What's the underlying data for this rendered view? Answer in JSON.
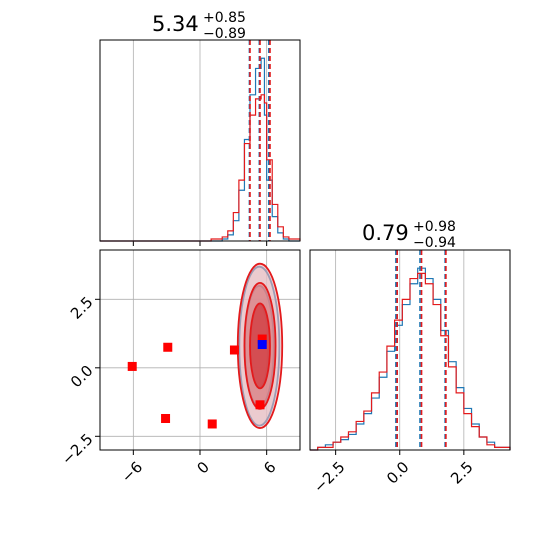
{
  "chart_data": [
    {
      "panel": "top-left",
      "type": "histogram",
      "title": {
        "value": "5.34",
        "upper": "+0.85",
        "lower": "−0.89"
      },
      "xlim": [
        -9,
        9
      ],
      "x_ticks": [
        -6,
        0,
        6
      ],
      "grid": true,
      "series": [
        {
          "color": "#1f77b4",
          "bins": [
            [
              -9,
              -8,
              0
            ],
            [
              -8,
              -7,
              0
            ],
            [
              -7,
              -6,
              0
            ],
            [
              -6,
              -5,
              0
            ],
            [
              -5,
              -4,
              0
            ],
            [
              -4,
              -3,
              0
            ],
            [
              -3,
              -2,
              0
            ],
            [
              -2,
              -1,
              0
            ],
            [
              -1,
              0,
              0
            ],
            [
              0,
              1,
              0
            ],
            [
              1,
              2,
              0
            ],
            [
              2,
              2.5,
              1
            ],
            [
              2.5,
              3,
              3
            ],
            [
              3,
              3.5,
              10
            ],
            [
              3.5,
              4,
              25
            ],
            [
              4,
              4.5,
              50
            ],
            [
              4.5,
              5,
              72
            ],
            [
              5,
              5.5,
              85
            ],
            [
              5.5,
              5.8,
              90
            ],
            [
              5.8,
              6,
              62
            ],
            [
              6,
              6.5,
              30
            ],
            [
              6.5,
              7,
              12
            ],
            [
              7,
              7.5,
              4
            ],
            [
              7.5,
              8,
              1
            ],
            [
              8,
              9,
              0
            ]
          ]
        },
        {
          "color": "#e31a1c",
          "bins": [
            [
              -9,
              -8,
              0
            ],
            [
              -8,
              -7,
              0
            ],
            [
              -7,
              -6,
              0
            ],
            [
              -6,
              -5,
              0
            ],
            [
              -5,
              -4,
              0
            ],
            [
              -4,
              -3,
              0
            ],
            [
              -3,
              -2,
              0
            ],
            [
              -2,
              -1,
              0
            ],
            [
              -1,
              0,
              0
            ],
            [
              0,
              1,
              0
            ],
            [
              1,
              2,
              1
            ],
            [
              2,
              2.5,
              2
            ],
            [
              2.5,
              3,
              5
            ],
            [
              3,
              3.5,
              14
            ],
            [
              3.5,
              4,
              30
            ],
            [
              4,
              4.5,
              48
            ],
            [
              4.5,
              5,
              62
            ],
            [
              5,
              5.5,
              70
            ],
            [
              5.5,
              5.8,
              72
            ],
            [
              5.8,
              6,
              68
            ],
            [
              6,
              6.5,
              40
            ],
            [
              6.5,
              7,
              18
            ],
            [
              7,
              7.5,
              7
            ],
            [
              7.5,
              8,
              2
            ],
            [
              8,
              9,
              1
            ]
          ]
        }
      ],
      "quantile_lines": [
        {
          "color": "#1f77b4",
          "x": [
            4.45,
            5.34,
            6.19
          ]
        },
        {
          "color": "#e31a1c",
          "x": [
            4.5,
            5.4,
            6.3
          ]
        }
      ]
    },
    {
      "panel": "bottom-left",
      "type": "scatter",
      "xlim": [
        -9,
        9
      ],
      "ylim": [
        -3,
        4.3
      ],
      "x_ticks": [
        -6,
        0,
        6
      ],
      "y_ticks": [
        -2.5,
        0.0,
        2.5
      ],
      "x_tick_labels": [
        "−6",
        "0",
        "6"
      ],
      "y_tick_labels": [
        "−2.5",
        "0.0",
        "2.5"
      ],
      "grid": true,
      "contours": [
        {
          "color": "#1f77b4",
          "center": [
            5.34,
            0.79
          ],
          "levels": [
            [
              0.8,
              1.5
            ],
            [
              1.3,
              2.2
            ],
            [
              1.8,
              2.9
            ]
          ]
        },
        {
          "color": "#e31a1c",
          "center": [
            5.4,
            0.8
          ],
          "levels": [
            [
              0.9,
              1.55
            ],
            [
              1.4,
              2.3
            ],
            [
              2.0,
              3.0
            ]
          ]
        }
      ],
      "markers": [
        {
          "color": "#ff0000",
          "points": [
            [
              -6.1,
              0.05
            ],
            [
              -2.9,
              0.75
            ],
            [
              -3.1,
              -1.85
            ],
            [
              1.1,
              -2.05
            ],
            [
              3.1,
              0.65
            ],
            [
              5.4,
              -1.35
            ],
            [
              5.6,
              1.05
            ]
          ]
        },
        {
          "color": "#0000ff",
          "points": [
            [
              5.6,
              0.85
            ]
          ]
        }
      ]
    },
    {
      "panel": "bottom-right",
      "type": "histogram",
      "title": {
        "value": "0.79",
        "upper": "+0.98",
        "lower": "−0.94"
      },
      "xlim": [
        -3.5,
        4.3
      ],
      "x_ticks": [
        -2.5,
        0.0,
        2.5
      ],
      "x_tick_labels": [
        "−2.5",
        "0.0",
        "2.5"
      ],
      "grid": true,
      "series": [
        {
          "color": "#1f77b4",
          "bins": [
            [
              -3.5,
              -3.2,
              0
            ],
            [
              -3.2,
              -2.9,
              1
            ],
            [
              -2.9,
              -2.6,
              2
            ],
            [
              -2.6,
              -2.3,
              3
            ],
            [
              -2.3,
              -2.0,
              4
            ],
            [
              -2.0,
              -1.7,
              6
            ],
            [
              -1.7,
              -1.4,
              10
            ],
            [
              -1.4,
              -1.1,
              14
            ],
            [
              -1.1,
              -0.8,
              20
            ],
            [
              -0.8,
              -0.5,
              28
            ],
            [
              -0.5,
              -0.2,
              38
            ],
            [
              -0.2,
              0.1,
              48
            ],
            [
              0.1,
              0.4,
              56
            ],
            [
              0.4,
              0.7,
              64
            ],
            [
              0.7,
              1.0,
              70
            ],
            [
              1.0,
              1.3,
              66
            ],
            [
              1.3,
              1.6,
              58
            ],
            [
              1.6,
              1.9,
              46
            ],
            [
              1.9,
              2.2,
              34
            ],
            [
              2.2,
              2.5,
              24
            ],
            [
              2.5,
              2.8,
              16
            ],
            [
              2.8,
              3.1,
              10
            ],
            [
              3.1,
              3.4,
              5
            ],
            [
              3.4,
              3.7,
              3
            ],
            [
              3.7,
              4.0,
              1
            ],
            [
              4.0,
              4.3,
              1
            ]
          ]
        },
        {
          "color": "#e31a1c",
          "bins": [
            [
              -3.5,
              -3.2,
              0
            ],
            [
              -3.2,
              -2.9,
              1
            ],
            [
              -2.9,
              -2.6,
              1
            ],
            [
              -2.6,
              -2.3,
              3
            ],
            [
              -2.3,
              -2.0,
              5
            ],
            [
              -2.0,
              -1.7,
              7
            ],
            [
              -1.7,
              -1.4,
              11
            ],
            [
              -1.4,
              -1.1,
              15
            ],
            [
              -1.1,
              -0.8,
              22
            ],
            [
              -0.8,
              -0.5,
              30
            ],
            [
              -0.5,
              -0.2,
              40
            ],
            [
              -0.2,
              0.1,
              50
            ],
            [
              0.1,
              0.4,
              58
            ],
            [
              0.4,
              0.7,
              66
            ],
            [
              0.7,
              1.0,
              68
            ],
            [
              1.0,
              1.3,
              64
            ],
            [
              1.3,
              1.6,
              56
            ],
            [
              1.6,
              1.9,
              44
            ],
            [
              1.9,
              2.2,
              32
            ],
            [
              2.2,
              2.5,
              22
            ],
            [
              2.5,
              2.8,
              14
            ],
            [
              2.8,
              3.1,
              9
            ],
            [
              3.1,
              3.4,
              5
            ],
            [
              3.4,
              3.7,
              2
            ],
            [
              3.7,
              4.0,
              1
            ],
            [
              4.0,
              4.3,
              1
            ]
          ]
        }
      ],
      "quantile_lines": [
        {
          "color": "#1f77b4",
          "x": [
            -0.15,
            0.79,
            1.77
          ]
        },
        {
          "color": "#e31a1c",
          "x": [
            -0.1,
            0.85,
            1.8
          ]
        }
      ]
    }
  ]
}
